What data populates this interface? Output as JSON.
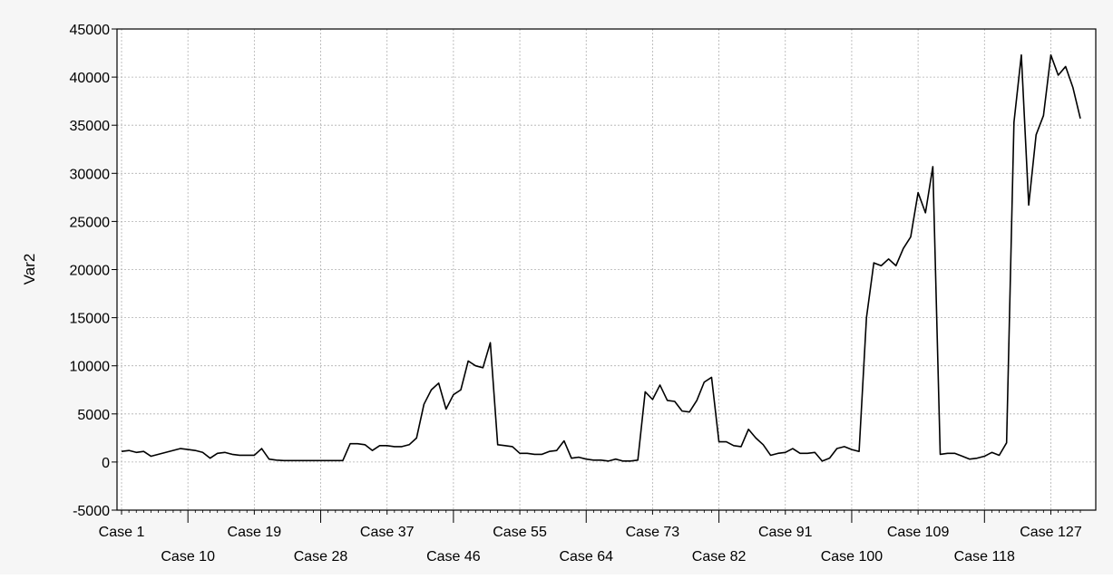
{
  "chart_data": {
    "type": "line",
    "title": "",
    "xlabel": "",
    "ylabel": "Var2",
    "ylim": [
      -5000,
      45000
    ],
    "yticks": [
      -5000,
      0,
      5000,
      10000,
      15000,
      20000,
      25000,
      30000,
      35000,
      40000,
      45000
    ],
    "ytick_labels": [
      "-5000",
      "0",
      "5000",
      "10000",
      "15000",
      "20000",
      "25000",
      "30000",
      "35000",
      "40000",
      "45000"
    ],
    "xtick_labels": [
      {
        "case": 1,
        "label": "Case 1"
      },
      {
        "case": 10,
        "label": "Case 10"
      },
      {
        "case": 19,
        "label": "Case 19"
      },
      {
        "case": 28,
        "label": "Case 28"
      },
      {
        "case": 37,
        "label": "Case 37"
      },
      {
        "case": 46,
        "label": "Case 46"
      },
      {
        "case": 55,
        "label": "Case 55"
      },
      {
        "case": 64,
        "label": "Case 64"
      },
      {
        "case": 73,
        "label": "Case 73"
      },
      {
        "case": 82,
        "label": "Case 82"
      },
      {
        "case": 91,
        "label": "Case 91"
      },
      {
        "case": 100,
        "label": "Case 100"
      },
      {
        "case": 109,
        "label": "Case 109"
      },
      {
        "case": 118,
        "label": "Case 118"
      },
      {
        "case": 127,
        "label": "Case 127"
      }
    ],
    "grid": true,
    "line_color": "#000000",
    "x_first_case": 1,
    "series": [
      {
        "values": [
          1100,
          1200,
          1000,
          1100,
          600,
          800,
          1000,
          1200,
          1400,
          1300,
          1200,
          1000,
          400,
          900,
          1000,
          800,
          700,
          700,
          700,
          1400,
          300,
          200,
          150,
          150,
          150,
          150,
          150,
          150,
          150,
          150,
          150,
          1900,
          1900,
          1800,
          1200,
          1700,
          1700,
          1600,
          1600,
          1800,
          2500,
          6000,
          7500,
          8200,
          5500,
          7000,
          7500,
          10500,
          10000,
          9800,
          12400,
          1800,
          1700,
          1600,
          900,
          900,
          800,
          800,
          1100,
          1200,
          2200,
          400,
          500,
          300,
          200,
          200,
          100,
          300,
          100,
          100,
          200,
          7300,
          6500,
          8000,
          6400,
          6300,
          5300,
          5200,
          6400,
          8300,
          8800,
          2100,
          2100,
          1700,
          1600,
          3400,
          2500,
          1800,
          700,
          900,
          1000,
          1400,
          900,
          900,
          1000,
          100,
          400,
          1400,
          1600,
          1300,
          1100,
          15000,
          20700,
          20400,
          21100,
          20400,
          22200,
          23400,
          28000,
          25900,
          30700,
          800,
          900,
          900,
          600,
          300,
          400,
          600,
          1000,
          700,
          2000,
          35300,
          42300,
          26700,
          34000,
          36000,
          42300,
          40200,
          41100,
          38900,
          35700
        ]
      }
    ]
  }
}
